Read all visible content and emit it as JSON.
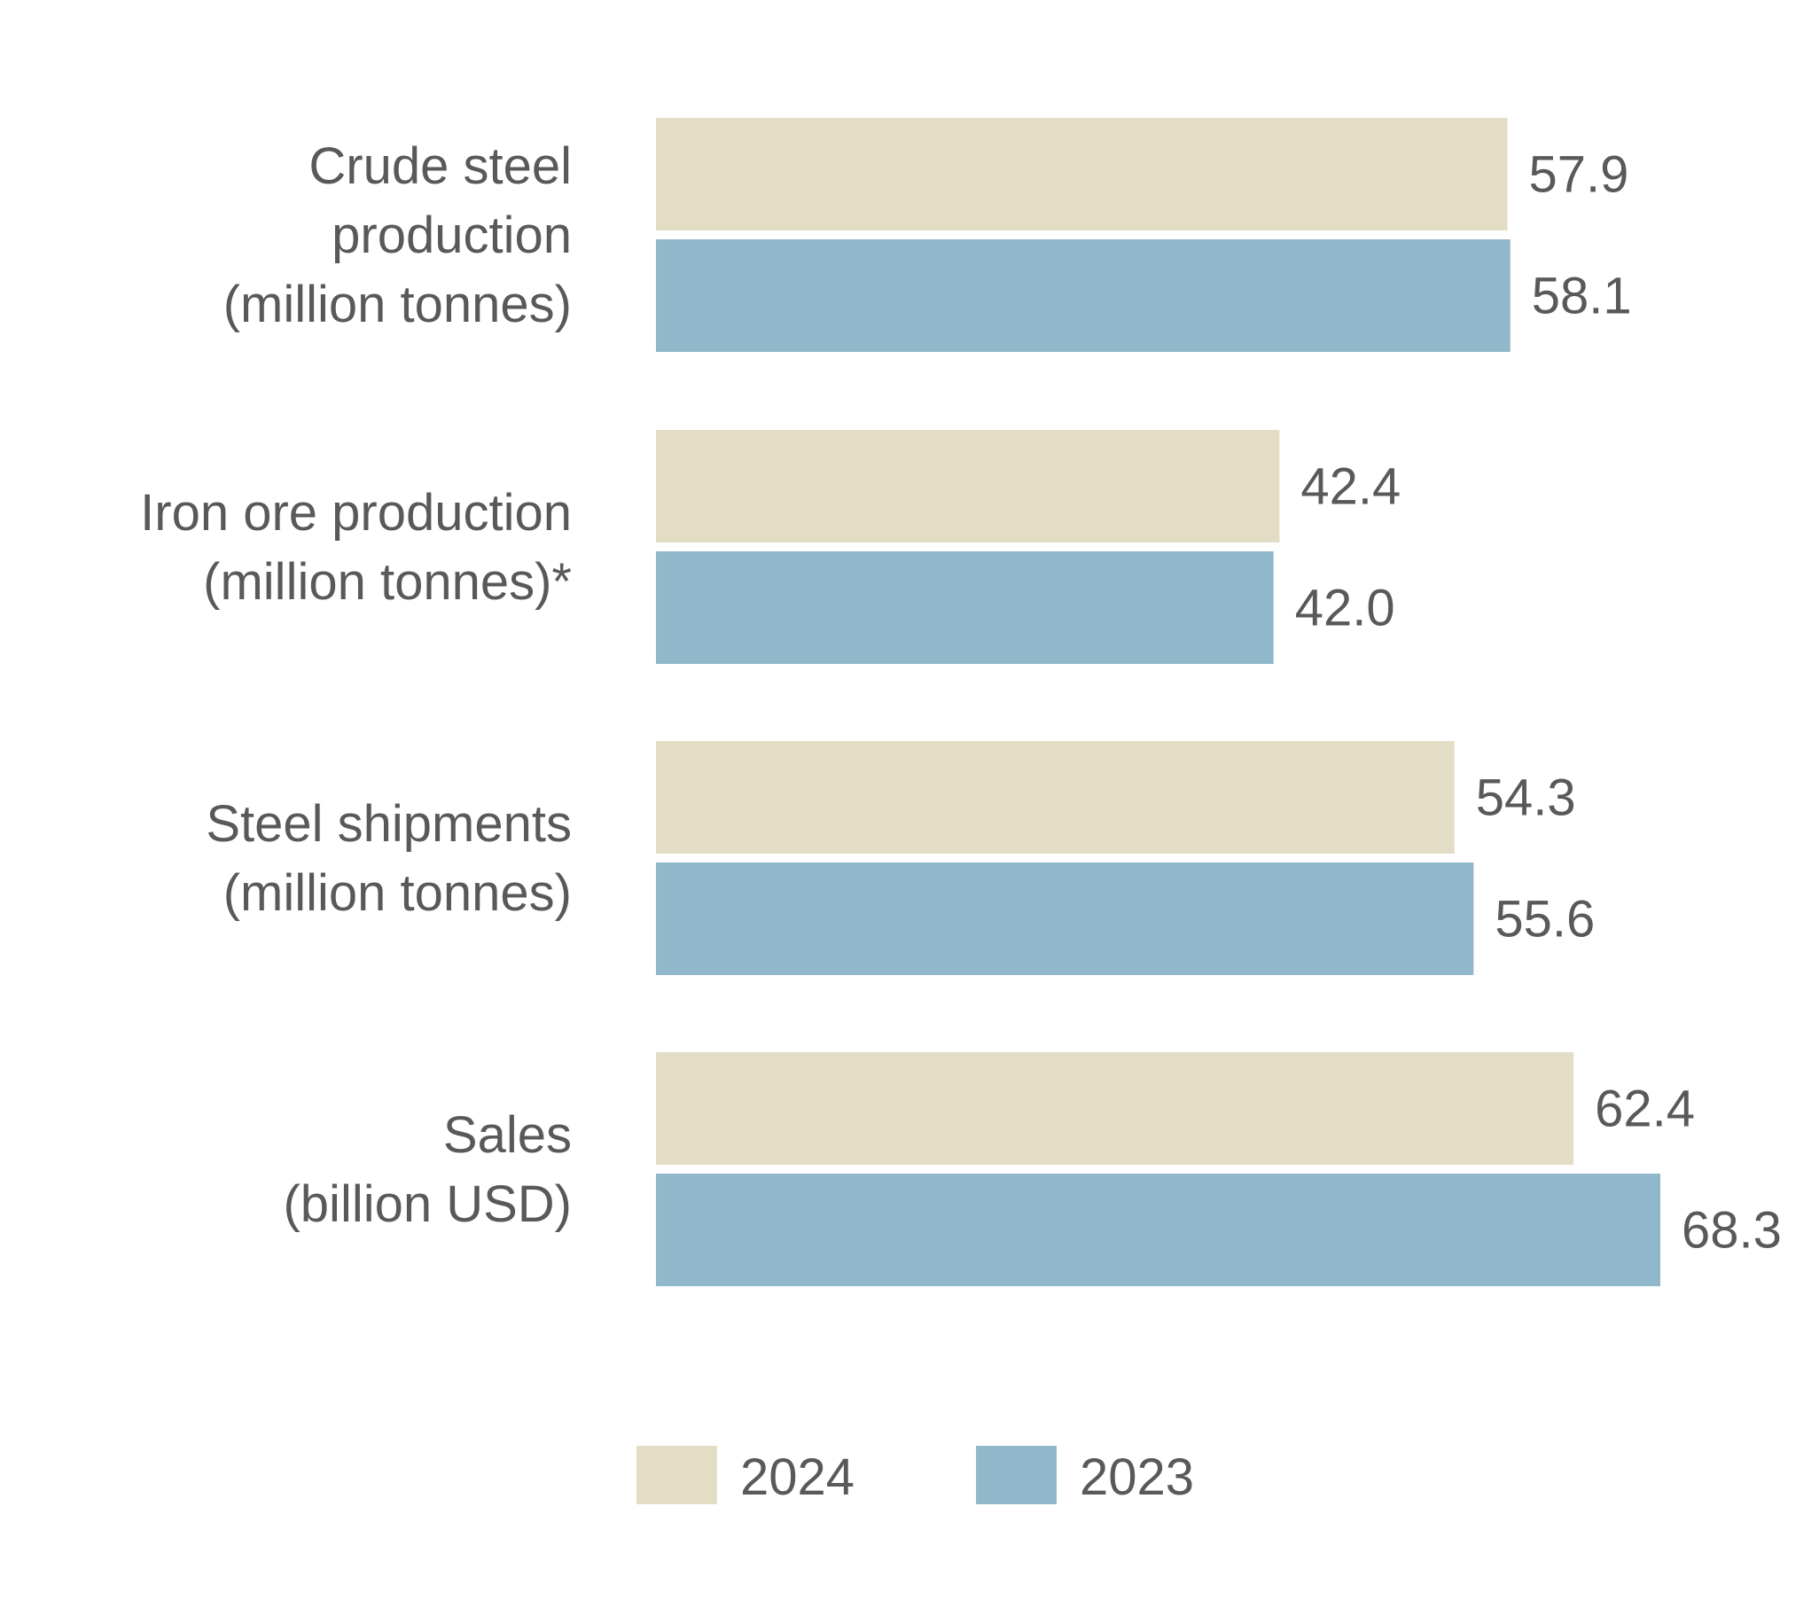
{
  "chart_data": {
    "type": "bar",
    "orientation": "horizontal",
    "title": "",
    "xlabel": "",
    "ylabel": "",
    "grid": false,
    "legend_position": "bottom",
    "xlim": [
      0,
      68.3
    ],
    "categories": [
      {
        "lines": [
          "Crude steel",
          "production",
          "(million tonnes)"
        ]
      },
      {
        "lines": [
          "Iron ore production",
          "(million tonnes)*"
        ]
      },
      {
        "lines": [
          "Steel shipments",
          "(million tonnes)"
        ]
      },
      {
        "lines": [
          "Sales",
          "(billion USD)"
        ]
      }
    ],
    "series": [
      {
        "name": "2024",
        "color": "#e2ddc4",
        "values": [
          57.9,
          42.4,
          54.3,
          62.4
        ],
        "labels": [
          "57.9",
          "42.4",
          "54.3",
          "62.4"
        ]
      },
      {
        "name": "2023",
        "color": "#91b8ca",
        "values": [
          58.1,
          42.0,
          55.6,
          68.3
        ],
        "labels": [
          "58.1",
          "42.0",
          "55.6",
          "68.3"
        ]
      }
    ],
    "text_color": "#595959"
  }
}
